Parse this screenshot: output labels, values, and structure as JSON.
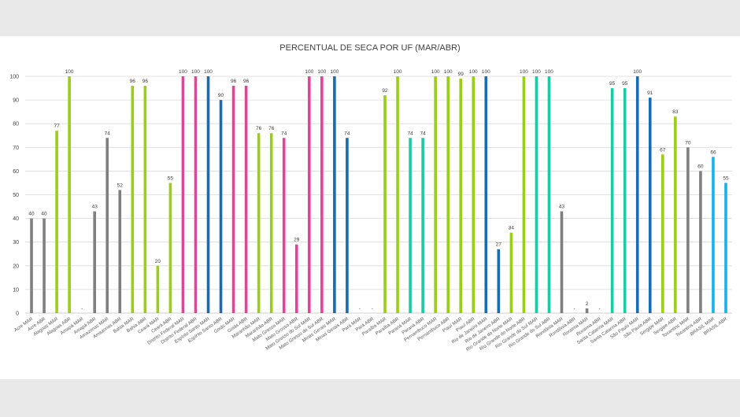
{
  "chart_data": {
    "type": "bar",
    "title": "PERCENTUAL DE SECA POR UF (MAR/ABR)",
    "xlabel": "",
    "ylabel": "",
    "ylim": [
      0,
      100
    ],
    "yticks": [
      0,
      10,
      20,
      30,
      40,
      50,
      60,
      70,
      80,
      90,
      100
    ],
    "grid": true,
    "legend": "none",
    "categories": [
      "Acre MAR",
      "Acre ABR",
      "Alagoas MAR",
      "Alagoas ABR",
      "Amapá MAR",
      "Amapá ABR",
      "Amazonas MAR",
      "Amazonas ABR",
      "Bahia MAR",
      "Bahia ABR",
      "Ceará MAR",
      "Ceará ABR",
      "Distrito Federal MAR",
      "Distrito Federal ABR",
      "Espírito Santo MAR",
      "Espírito Santo ABR",
      "Goiás MAR",
      "Goiás ABR",
      "Maranhão MAR",
      "Maranhão ABR",
      "Mato Grosso MAR",
      "Mato Grosso ABR",
      "Mato Grosso do Sul MAR",
      "Mato Grosso do Sul ABR",
      "Minas Gerais MAR",
      "Minas Gerais ABR",
      "Pará MAR",
      "Pará ABR",
      "Paraíba MAR",
      "Paraíba ABR",
      "Paraná MAR",
      "Paraná ABR",
      "Pernambuco MAR",
      "Pernambuco ABR",
      "Piauí MAR",
      "Piauí ABR",
      "Rio de Janeiro MAR",
      "Rio de Janeiro ABR",
      "Rio Grande do Norte MAR",
      "Rio Grande do Norte ABR",
      "Rio Grande do Sul MAR",
      "Rio Grande do Sul ABR",
      "Rondônia MAR",
      "Rondônia ABR",
      "Roraima MAR",
      "Roraima ABR",
      "Santa Catarina MAR",
      "Santa Catarina ABR",
      "São Paulo MAR",
      "São Paulo ABR",
      "Sergipe MAR",
      "Sergipe ABR",
      "Tocantins MAR",
      "Tocantins ABR",
      "BRASIL MAR",
      "BRASIL ABR"
    ],
    "values": [
      40,
      40,
      77,
      100,
      0,
      43,
      74,
      52,
      96,
      96,
      20,
      55,
      100,
      100,
      100,
      90,
      96,
      96,
      76,
      76,
      74,
      29,
      100,
      100,
      100,
      74,
      0,
      0,
      92,
      100,
      74,
      74,
      100,
      100,
      99,
      100,
      100,
      27,
      34,
      100,
      100,
      100,
      43,
      0,
      2,
      0,
      95,
      95,
      100,
      91,
      67,
      83,
      70,
      60,
      66,
      55
    ],
    "data_labels": [
      "40",
      "40",
      "77",
      "100",
      "-",
      "43",
      "74",
      "52",
      "96",
      "96",
      "20",
      "55",
      "100",
      "100",
      "100",
      "90",
      "96",
      "96",
      "76",
      "76",
      "74",
      "29",
      "100",
      "100",
      "100",
      "74",
      "-",
      "-",
      "92",
      "100",
      "74",
      "74",
      "100",
      "100",
      "99",
      "100",
      "100",
      "27",
      "34",
      "100",
      "100",
      "100",
      "43",
      "-",
      "2",
      "-",
      "95",
      "95",
      "100",
      "91",
      "67",
      "83",
      "70",
      "60",
      "66",
      "55"
    ],
    "colors": [
      "#7f7f7f",
      "#7f7f7f",
      "#9acd1e",
      "#9acd1e",
      "#7f7f7f",
      "#7f7f7f",
      "#7f7f7f",
      "#7f7f7f",
      "#9acd1e",
      "#9acd1e",
      "#9acd1e",
      "#9acd1e",
      "#e8409b",
      "#e8409b",
      "#1a6ab4",
      "#1a6ab4",
      "#e8409b",
      "#e8409b",
      "#9acd1e",
      "#9acd1e",
      "#e8409b",
      "#e8409b",
      "#e8409b",
      "#e8409b",
      "#1a6ab4",
      "#1a6ab4",
      "#7f7f7f",
      "#7f7f7f",
      "#9acd1e",
      "#9acd1e",
      "#1fc9a3",
      "#1fc9a3",
      "#9acd1e",
      "#9acd1e",
      "#9acd1e",
      "#9acd1e",
      "#1a6ab4",
      "#1a6ab4",
      "#9acd1e",
      "#9acd1e",
      "#1fc9a3",
      "#1fc9a3",
      "#7f7f7f",
      "#7f7f7f",
      "#7f7f7f",
      "#7f7f7f",
      "#1fc9a3",
      "#1fc9a3",
      "#1a6ab4",
      "#1a6ab4",
      "#9acd1e",
      "#9acd1e",
      "#7f7f7f",
      "#7f7f7f",
      "#1ab0e8",
      "#1ab0e8"
    ],
    "grid_color": "#d9d9d9",
    "axis_color": "#bfbfbf"
  }
}
